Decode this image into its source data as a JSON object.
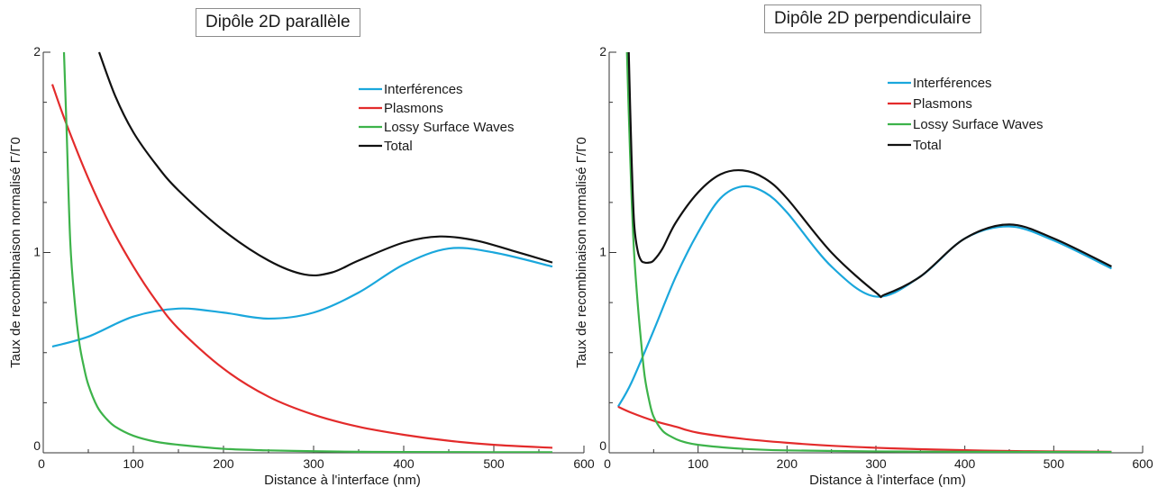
{
  "chart_data": [
    {
      "type": "line",
      "title": "Dipôle 2D parallèle",
      "xlabel": "Distance à l'interface (nm)",
      "ylabel": "Taux de recombinaison normalisé Γ/Γ0",
      "xlim": [
        0,
        600
      ],
      "ylim": [
        0,
        2
      ],
      "xticks": [
        0,
        100,
        200,
        300,
        400,
        500,
        600
      ],
      "yticks": [
        0,
        1,
        2
      ],
      "legend_position": "top-right",
      "series": [
        {
          "name": "Interférences",
          "color": "#1aa7dc",
          "x": [
            10,
            50,
            100,
            150,
            200,
            250,
            300,
            350,
            400,
            450,
            500,
            565
          ],
          "y": [
            0.53,
            0.58,
            0.68,
            0.72,
            0.7,
            0.67,
            0.7,
            0.8,
            0.94,
            1.02,
            1.0,
            0.93
          ]
        },
        {
          "name": "Plasmons",
          "color": "#e32b2b",
          "x": [
            10,
            25,
            50,
            75,
            100,
            125,
            150,
            200,
            250,
            300,
            350,
            400,
            450,
            500,
            565
          ],
          "y": [
            1.84,
            1.65,
            1.37,
            1.13,
            0.93,
            0.76,
            0.62,
            0.42,
            0.28,
            0.19,
            0.13,
            0.09,
            0.06,
            0.04,
            0.025
          ]
        },
        {
          "name": "Lossy Surface Waves",
          "color": "#3db34a",
          "x": [
            23,
            26,
            30,
            35,
            40,
            45,
            50,
            60,
            70,
            80,
            100,
            125,
            150,
            200,
            250,
            300,
            350,
            400,
            500,
            565
          ],
          "y": [
            2.0,
            1.6,
            1.05,
            0.75,
            0.55,
            0.43,
            0.34,
            0.23,
            0.17,
            0.13,
            0.085,
            0.055,
            0.04,
            0.02,
            0.012,
            0.008,
            0.005,
            0.004,
            0.003,
            0.003
          ]
        },
        {
          "name": "Total",
          "color": "#111111",
          "x": [
            62,
            80,
            100,
            125,
            150,
            200,
            250,
            290,
            320,
            350,
            400,
            440,
            480,
            520,
            565
          ],
          "y": [
            2.0,
            1.78,
            1.6,
            1.44,
            1.31,
            1.11,
            0.96,
            0.89,
            0.9,
            0.96,
            1.05,
            1.08,
            1.06,
            1.01,
            0.95
          ]
        }
      ]
    },
    {
      "type": "line",
      "title": "Dipôle 2D perpendiculaire",
      "xlabel": "Distance à l'interface (nm)",
      "ylabel": "Taux de recombinaison normalisé Γ/Γ0",
      "xlim": [
        0,
        600
      ],
      "ylim": [
        0,
        2
      ],
      "xticks": [
        0,
        100,
        200,
        300,
        400,
        500,
        600
      ],
      "yticks": [
        0,
        1,
        2
      ],
      "legend_position": "top-right",
      "series": [
        {
          "name": "Interférences",
          "color": "#1aa7dc",
          "x": [
            10,
            25,
            50,
            75,
            100,
            125,
            150,
            175,
            200,
            250,
            300,
            350,
            400,
            450,
            500,
            565
          ],
          "y": [
            0.23,
            0.35,
            0.61,
            0.88,
            1.1,
            1.27,
            1.33,
            1.3,
            1.2,
            0.93,
            0.78,
            0.88,
            1.07,
            1.13,
            1.06,
            0.92
          ]
        },
        {
          "name": "Plasmons",
          "color": "#e32b2b",
          "x": [
            10,
            25,
            50,
            75,
            100,
            150,
            200,
            250,
            300,
            350,
            400,
            450,
            500,
            565
          ],
          "y": [
            0.23,
            0.2,
            0.16,
            0.13,
            0.1,
            0.07,
            0.05,
            0.035,
            0.025,
            0.018,
            0.013,
            0.009,
            0.007,
            0.005
          ]
        },
        {
          "name": "Lossy Surface Waves",
          "color": "#3db34a",
          "x": [
            20,
            22,
            25,
            28,
            32,
            36,
            40,
            45,
            50,
            60,
            70,
            80,
            100,
            150,
            200,
            300,
            400,
            565
          ],
          "y": [
            2.0,
            1.7,
            1.3,
            1.0,
            0.75,
            0.55,
            0.38,
            0.26,
            0.18,
            0.11,
            0.08,
            0.06,
            0.04,
            0.02,
            0.012,
            0.007,
            0.005,
            0.004
          ]
        },
        {
          "name": "Total",
          "color": "#111111",
          "x": [
            22,
            25,
            28,
            32,
            36,
            40,
            45,
            50,
            60,
            75,
            100,
            125,
            150,
            175,
            200,
            250,
            300,
            310,
            350,
            400,
            450,
            500,
            565
          ],
          "y": [
            2.0,
            1.5,
            1.15,
            1.01,
            0.96,
            0.95,
            0.95,
            0.96,
            1.02,
            1.15,
            1.3,
            1.39,
            1.41,
            1.37,
            1.27,
            1.0,
            0.8,
            0.79,
            0.88,
            1.07,
            1.14,
            1.07,
            0.93
          ]
        }
      ]
    }
  ]
}
